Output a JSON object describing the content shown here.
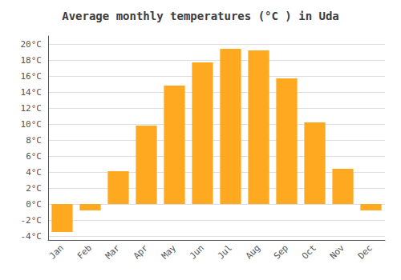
{
  "chart_data": {
    "type": "bar",
    "title": "Average monthly temperatures (°C ) in Uda",
    "categories": [
      "Jan",
      "Feb",
      "Mar",
      "Apr",
      "May",
      "Jun",
      "Jul",
      "Aug",
      "Sep",
      "Oct",
      "Nov",
      "Dec"
    ],
    "values": [
      -3.5,
      -0.8,
      4.1,
      9.8,
      14.8,
      17.7,
      19.4,
      19.2,
      15.7,
      10.2,
      4.4,
      -0.8
    ],
    "color": "#FFA920",
    "ylim": [
      -4.5,
      21
    ],
    "yticks": [
      {
        "value": -4,
        "label": "-4°C"
      },
      {
        "value": -2,
        "label": "-2°C"
      },
      {
        "value": 0,
        "label": "0°C"
      },
      {
        "value": 2,
        "label": "2°C"
      },
      {
        "value": 4,
        "label": "4°C"
      },
      {
        "value": 6,
        "label": "6°C"
      },
      {
        "value": 8,
        "label": "8°C"
      },
      {
        "value": 10,
        "label": "10°C"
      },
      {
        "value": 12,
        "label": "12°C"
      },
      {
        "value": 14,
        "label": "14°C"
      },
      {
        "value": 16,
        "label": "16°C"
      },
      {
        "value": 18,
        "label": "18°C"
      },
      {
        "value": 20,
        "label": "20°C"
      }
    ],
    "grid": true
  }
}
